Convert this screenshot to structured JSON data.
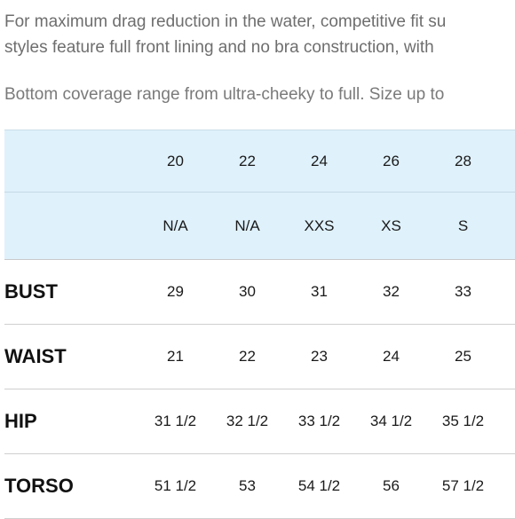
{
  "intro": {
    "line1": "For maximum drag reduction in the water, competitive fit su",
    "line2": "styles feature full front lining and no bra construction, with"
  },
  "note": "Bottom coverage range from ultra-cheeky to full. Size up to",
  "size_chart": {
    "sizes": [
      "20",
      "22",
      "24",
      "26",
      "28"
    ],
    "letter_sizes": [
      "N/A",
      "N/A",
      "XXS",
      "XS",
      "S"
    ],
    "rows": [
      {
        "label": "BUST",
        "values": [
          "29",
          "30",
          "31",
          "32",
          "33"
        ]
      },
      {
        "label": "WAIST",
        "values": [
          "21",
          "22",
          "23",
          "24",
          "25"
        ]
      },
      {
        "label": "HIP",
        "values": [
          "31 1/2",
          "32 1/2",
          "33 1/2",
          "34 1/2",
          "35 1/2"
        ]
      },
      {
        "label": "TORSO",
        "values": [
          "51 1/2",
          "53",
          "54 1/2",
          "56",
          "57 1/2"
        ]
      }
    ]
  }
}
